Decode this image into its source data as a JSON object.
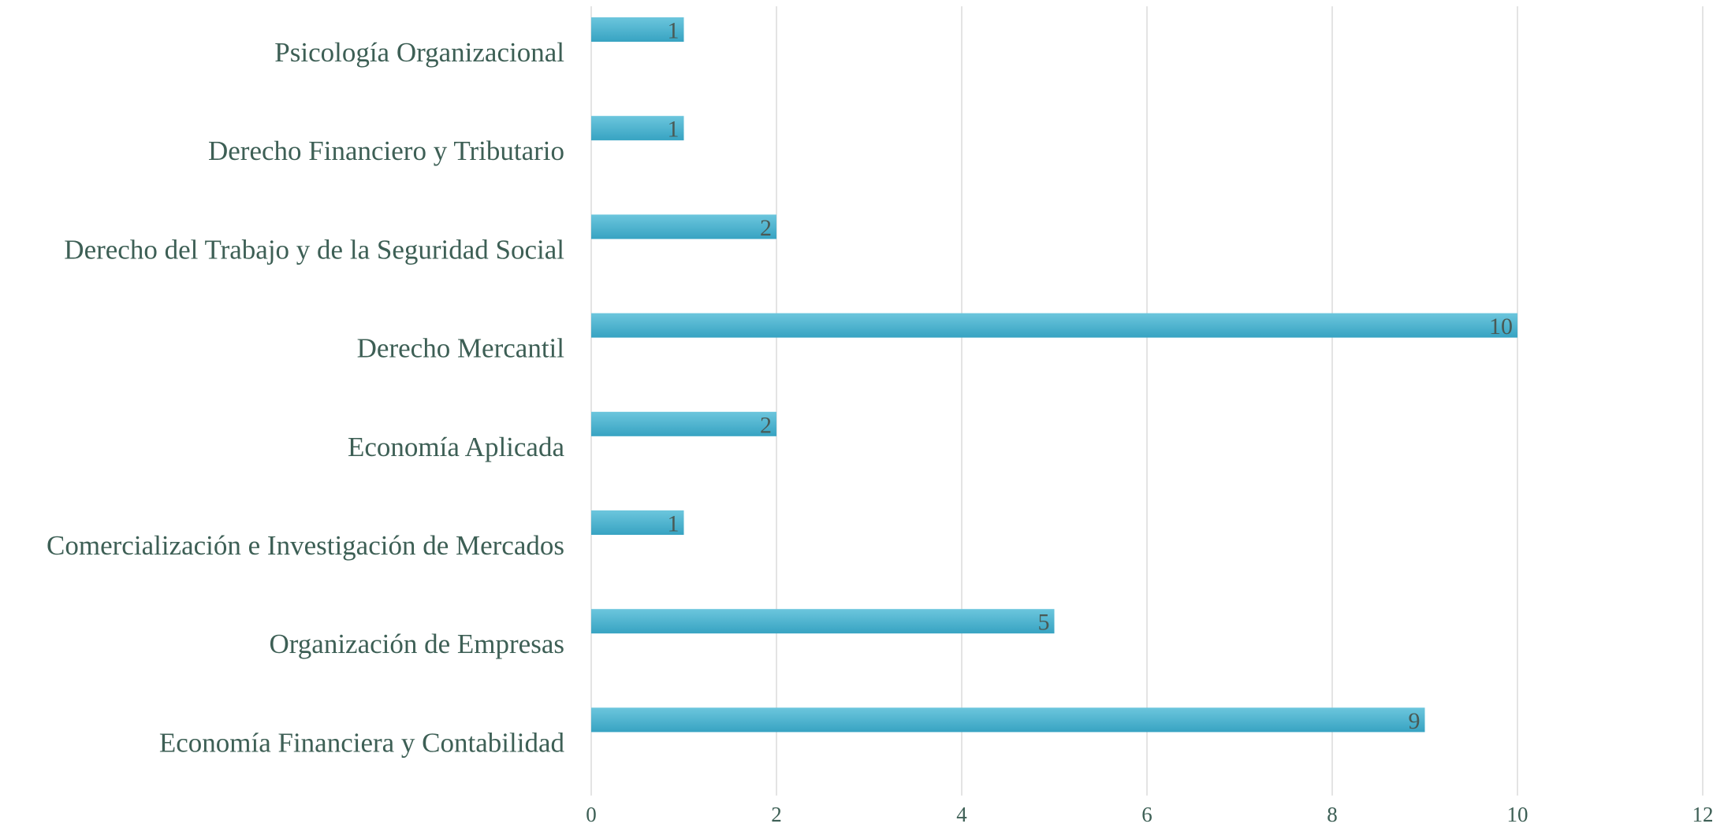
{
  "chart_data": {
    "type": "bar",
    "orientation": "horizontal",
    "title": "",
    "xlabel": "",
    "ylabel": "",
    "categories": [
      "Psicología Organizacional",
      "Derecho Financiero y Tributario",
      "Derecho del Trabajo y de la Seguridad Social",
      "Derecho Mercantil",
      "Economía Aplicada",
      "Comercialización e Investigación de Mercados",
      "Organización de Empresas",
      "Economía Financiera y Contabilidad"
    ],
    "values": [
      1,
      1,
      2,
      10,
      2,
      1,
      5,
      9
    ],
    "data_labels": [
      "1",
      "1",
      "2",
      "10",
      "2",
      "1",
      "5",
      "9"
    ],
    "xlim": [
      0,
      12
    ],
    "x_ticks": [
      0,
      2,
      4,
      6,
      8,
      10,
      12
    ],
    "x_tick_labels": [
      "0",
      "2",
      "4",
      "6",
      "8",
      "10",
      "12"
    ],
    "grid": "vertical",
    "legend": "none",
    "colors": {
      "bar": "#4ab4d0",
      "bar_light": "#6cc6dd",
      "bar_dark": "#37a3c2",
      "text": "#3d5f55",
      "gridline": "#dcdcdc"
    }
  }
}
